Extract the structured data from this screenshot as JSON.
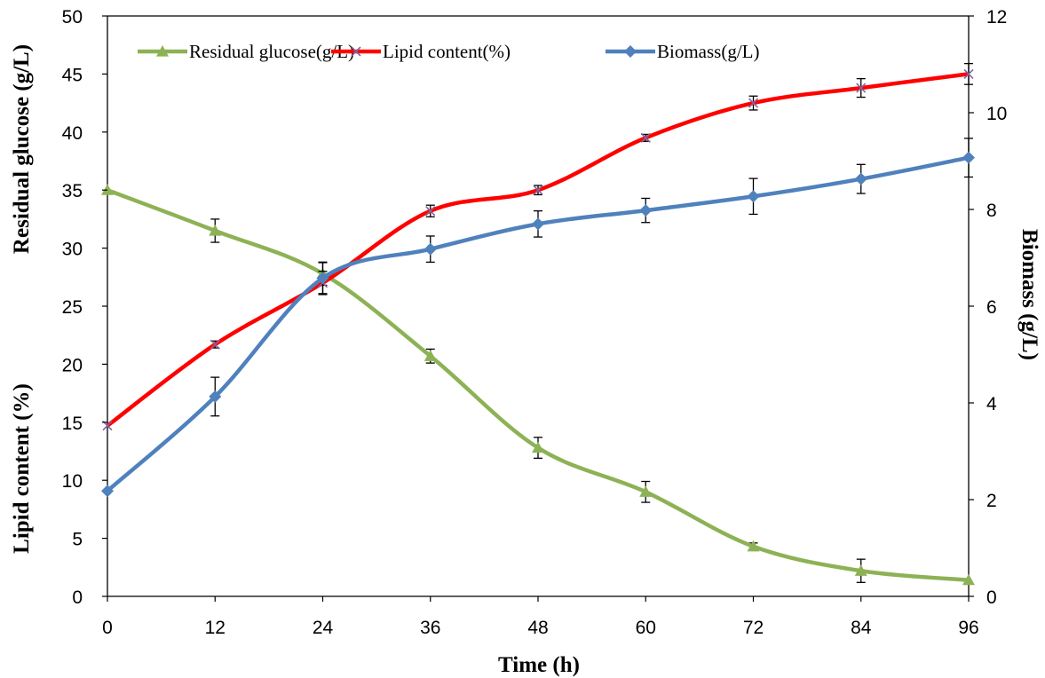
{
  "chart_data": {
    "type": "line",
    "x": [
      0,
      12,
      24,
      36,
      48,
      60,
      72,
      84,
      96
    ],
    "x_ticks": [
      "0",
      "12",
      "24",
      "36",
      "48",
      "60",
      "72",
      "84",
      "96"
    ],
    "xlabel": "Time (h)",
    "xlim": [
      0,
      96
    ],
    "left_axis": {
      "label_top": "Residual glucose (g/L)",
      "label_bottom": "Lipid content (%)",
      "ylim": [
        0,
        50
      ],
      "ticks": [
        "0",
        "5",
        "10",
        "15",
        "20",
        "25",
        "30",
        "35",
        "40",
        "45",
        "50"
      ]
    },
    "right_axis": {
      "label": "Biomass (g/L)",
      "ylim": [
        0,
        12
      ],
      "ticks": [
        "0",
        "2",
        "4",
        "6",
        "8",
        "10",
        "12"
      ]
    },
    "grid": false,
    "legend_position": "top",
    "series": [
      {
        "name": "Residual glucose(g/L)",
        "axis": "left",
        "color": "#8DB255",
        "marker": "triangle",
        "values": [
          35.0,
          31.5,
          27.8,
          20.7,
          12.8,
          9.0,
          4.3,
          2.2,
          1.4
        ],
        "errors": [
          0,
          1.0,
          1.0,
          0.6,
          0.9,
          0.9,
          0.3,
          1.0,
          0
        ]
      },
      {
        "name": "Lipid content(%)",
        "axis": "left",
        "color": "#FF0000",
        "marker": "x",
        "values": [
          14.7,
          21.7,
          27.0,
          33.2,
          35.0,
          39.5,
          42.5,
          43.8,
          45.0
        ],
        "errors": [
          0,
          0.3,
          1.0,
          0.5,
          0.4,
          0.3,
          0.6,
          0.8,
          0.9
        ]
      },
      {
        "name": "Biomass(g/L)",
        "axis": "right",
        "color": "#4F81BD",
        "marker": "diamond",
        "values": [
          2.18,
          4.13,
          6.58,
          7.18,
          7.7,
          7.98,
          8.27,
          8.63,
          9.07
        ],
        "errors": [
          0,
          0.4,
          0.32,
          0.27,
          0.27,
          0.25,
          0.37,
          0.3,
          0.4
        ]
      }
    ]
  }
}
